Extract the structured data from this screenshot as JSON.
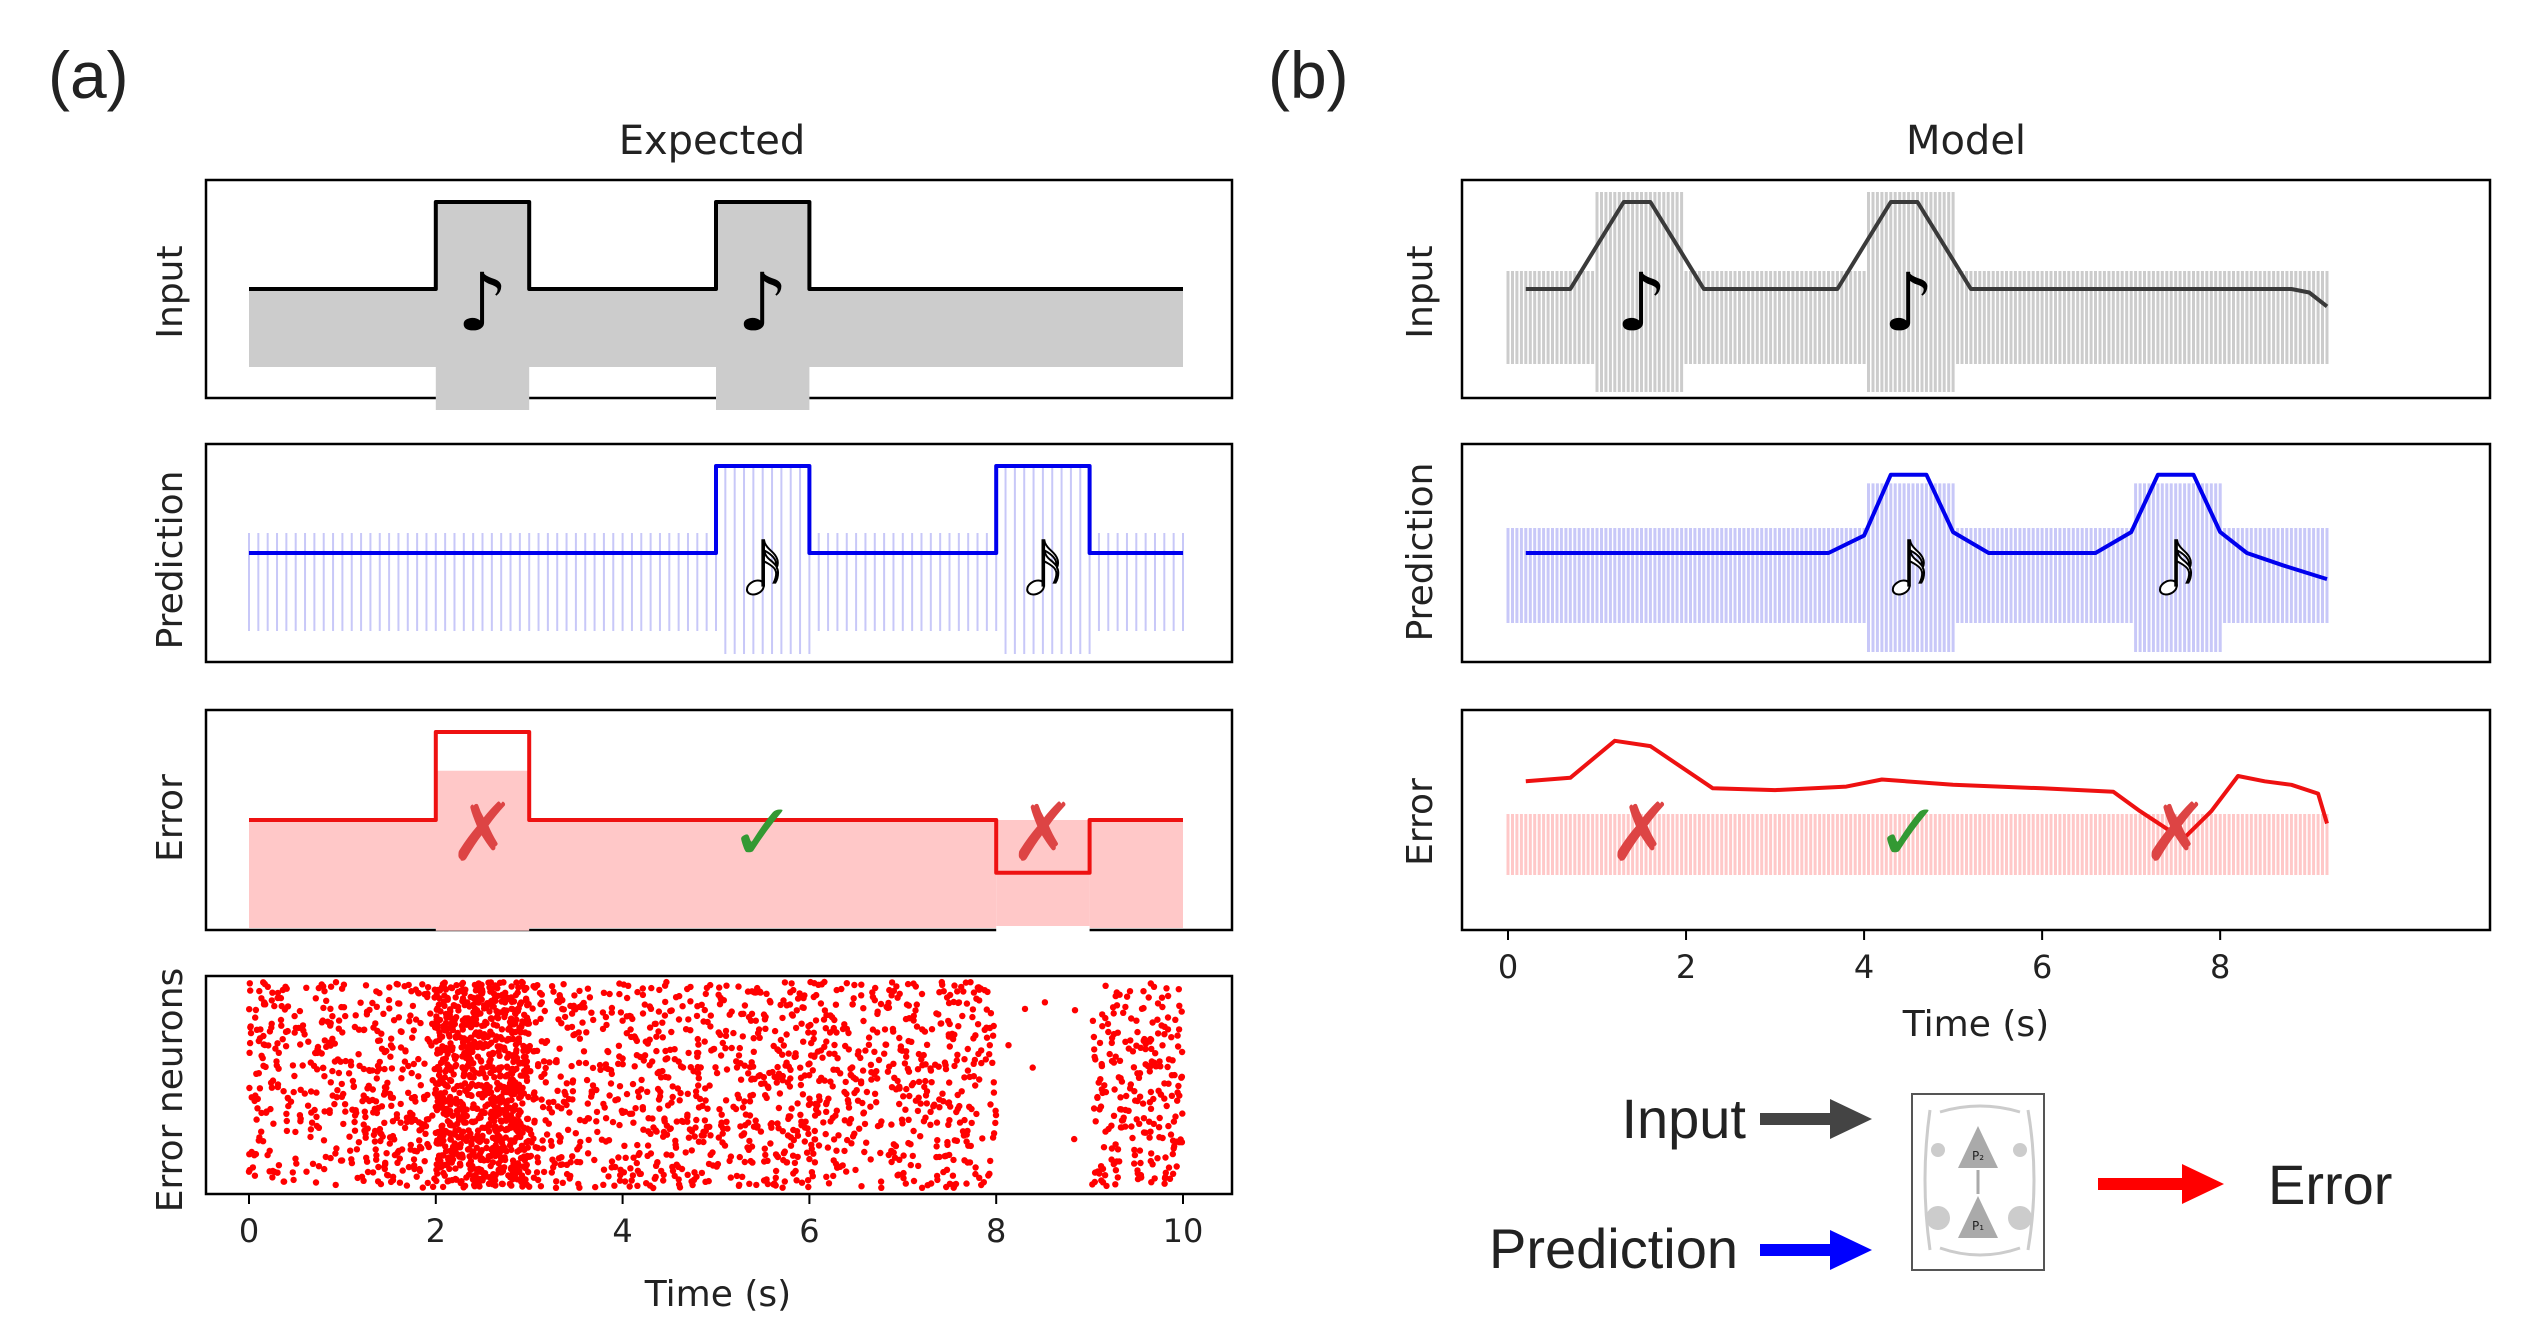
{
  "panel_labels": {
    "a": "(a)",
    "b": "(b)"
  },
  "colors": {
    "input": "#000000",
    "input_model": "#3a3a3a",
    "input_band": "#cccccc",
    "prediction": "#0000ee",
    "prediction_band": "#c8c8f8",
    "error": "#ee1111",
    "error_band": "#ffc8c8",
    "cross": "#dd4444",
    "check": "#339933",
    "spike": "#ff0000",
    "arrow_input": "#444444",
    "arrow_prediction": "#0000ff",
    "arrow_error": "#ff0000"
  },
  "chart_data": [
    {
      "type": "line",
      "id": "expected",
      "title": "Expected",
      "xlabel": "Time (s)",
      "xlim": [
        0,
        10
      ],
      "xticks": [
        "0",
        "2",
        "4",
        "6",
        "8",
        "10"
      ],
      "rows": [
        {
          "ylabel": "Input",
          "x": [
            0,
            2,
            2,
            3,
            3,
            5,
            5,
            6,
            6,
            10
          ],
          "y": [
            0.5,
            0.5,
            1,
            1,
            0.5,
            0.5,
            1,
            1,
            0.5,
            0.5
          ],
          "notes": [
            {
              "x": 2.5,
              "symbol": "♪",
              "filled": true
            },
            {
              "x": 5.5,
              "symbol": "♪",
              "filled": true
            }
          ]
        },
        {
          "ylabel": "Prediction",
          "x": [
            0,
            5,
            5,
            6,
            6,
            8,
            8,
            9,
            9,
            10
          ],
          "y": [
            0.5,
            0.5,
            1,
            1,
            0.5,
            0.5,
            1,
            1,
            0.5,
            0.5
          ],
          "notes": [
            {
              "x": 5.5,
              "symbol": "𝅘𝅥𝅯",
              "filled": false
            },
            {
              "x": 8.5,
              "symbol": "𝅘𝅥𝅯",
              "filled": false
            }
          ]
        },
        {
          "ylabel": "Error",
          "x": [
            0,
            2,
            2,
            3,
            3,
            8,
            8,
            9,
            9,
            10
          ],
          "y": [
            0.5,
            0.5,
            1,
            1,
            0.5,
            0.5,
            0.2,
            0.2,
            0.5,
            0.5
          ],
          "marks": [
            {
              "x": 2.5,
              "symbol": "✗"
            },
            {
              "x": 5.5,
              "symbol": "✓"
            },
            {
              "x": 8.5,
              "symbol": "✗"
            }
          ]
        },
        {
          "ylabel": "Error neurons",
          "type": "scatter",
          "rates": [
            {
              "from": 0,
              "to": 2,
              "rate": "medium"
            },
            {
              "from": 2,
              "to": 3,
              "rate": "high"
            },
            {
              "from": 3,
              "to": 8,
              "rate": "medium"
            },
            {
              "from": 8,
              "to": 9,
              "rate": "low"
            },
            {
              "from": 9,
              "to": 10,
              "rate": "medium"
            }
          ]
        }
      ]
    },
    {
      "type": "line",
      "id": "model",
      "title": "Model",
      "xlabel": "Time (s)",
      "xlim": [
        -0.1,
        9.6
      ],
      "xticks": [
        "0",
        "2",
        "4",
        "6",
        "8"
      ],
      "rows": [
        {
          "ylabel": "Input",
          "x": [
            0.2,
            0.7,
            1.3,
            1.6,
            2.2,
            3.7,
            4.3,
            4.6,
            5.2,
            8.8,
            9.0,
            9.2
          ],
          "y": [
            0.5,
            0.5,
            1,
            1,
            0.5,
            0.5,
            1,
            1,
            0.5,
            0.5,
            0.48,
            0.4
          ],
          "notes": [
            {
              "x": 1.5,
              "symbol": "♪",
              "filled": true
            },
            {
              "x": 4.5,
              "symbol": "♪",
              "filled": true
            }
          ]
        },
        {
          "ylabel": "Prediction",
          "x": [
            0.2,
            3.6,
            4.0,
            4.3,
            4.7,
            5.0,
            5.4,
            6.6,
            7.0,
            7.3,
            7.7,
            8.0,
            8.3,
            8.7,
            9.2
          ],
          "y": [
            0.5,
            0.5,
            0.6,
            0.95,
            0.95,
            0.62,
            0.5,
            0.5,
            0.62,
            0.95,
            0.95,
            0.62,
            0.5,
            0.43,
            0.35
          ],
          "notes": [
            {
              "x": 4.5,
              "symbol": "𝅘𝅥𝅯",
              "filled": false
            },
            {
              "x": 7.5,
              "symbol": "𝅘𝅥𝅯",
              "filled": false
            }
          ]
        },
        {
          "ylabel": "Error",
          "x": [
            0.2,
            0.7,
            1.2,
            1.6,
            2.3,
            3.0,
            3.8,
            4.2,
            5.0,
            6.0,
            6.8,
            7.1,
            7.4,
            7.6,
            7.9,
            8.2,
            8.5,
            8.8,
            9.1,
            9.2
          ],
          "y": [
            0.72,
            0.74,
            0.95,
            0.92,
            0.68,
            0.67,
            0.69,
            0.73,
            0.7,
            0.68,
            0.66,
            0.55,
            0.45,
            0.4,
            0.55,
            0.75,
            0.72,
            0.7,
            0.65,
            0.48
          ],
          "marks": [
            {
              "x": 1.5,
              "symbol": "✗"
            },
            {
              "x": 4.5,
              "symbol": "✓"
            },
            {
              "x": 7.5,
              "symbol": "✗"
            }
          ]
        }
      ]
    }
  ],
  "diagram": {
    "input_label": "Input",
    "prediction_label": "Prediction",
    "error_label": "Error",
    "neuron_labels": [
      "P₂",
      "P₁"
    ]
  }
}
